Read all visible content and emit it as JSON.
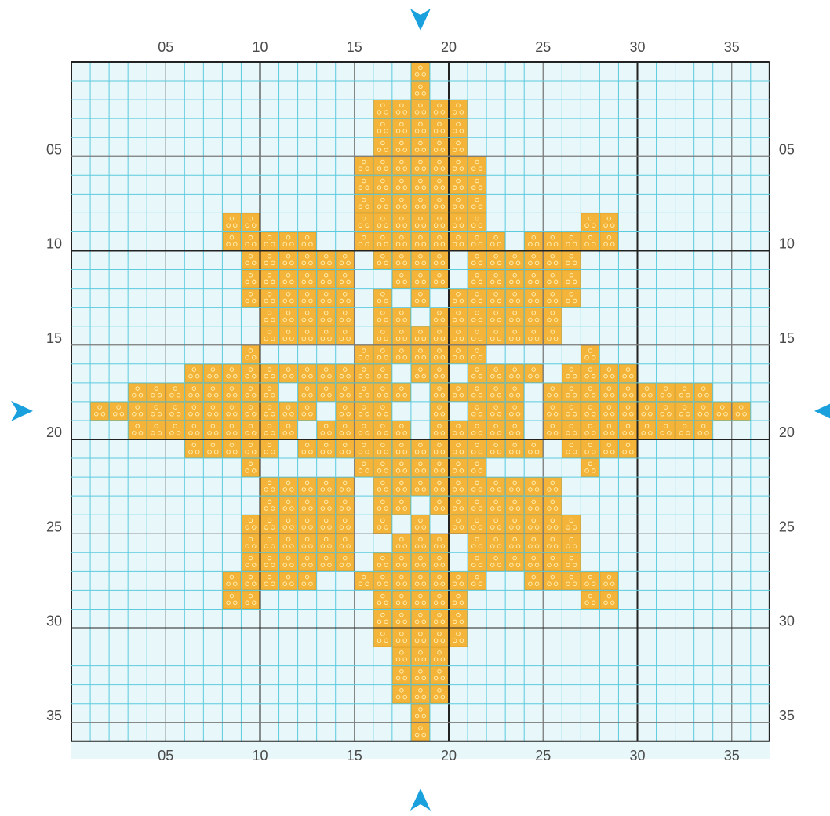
{
  "pattern": {
    "grid_columns": 37,
    "grid_rows": 36,
    "major_every": 10,
    "column_labels": [
      "05",
      "10",
      "15",
      "20",
      "25",
      "30",
      "35"
    ],
    "row_labels": [
      "05",
      "10",
      "15",
      "20",
      "25",
      "30",
      "35"
    ],
    "stitch_rows": [
      [
        19,
        19,
        19
      ],
      [
        19,
        19,
        20
      ],
      [
        17,
        21,
        17
      ],
      [
        17,
        21,
        17
      ],
      [
        17,
        21,
        17
      ],
      [
        16,
        22,
        16
      ],
      [
        16,
        22,
        16
      ],
      [
        16,
        22,
        16
      ],
      [
        9,
        10,
        9,
        16,
        22,
        16,
        28,
        29,
        28
      ],
      [
        9,
        13,
        9,
        16,
        23,
        16,
        25,
        29,
        25
      ],
      [
        10,
        15,
        10,
        17,
        20,
        17,
        22,
        27,
        22
      ],
      [
        10,
        15,
        10,
        18,
        19,
        18,
        20,
        20,
        20,
        22,
        27,
        22
      ],
      [
        10,
        15,
        10,
        17,
        17,
        17,
        19,
        19,
        19,
        21,
        21,
        21,
        22,
        27,
        22
      ],
      [
        11,
        15,
        11,
        17,
        18,
        17,
        20,
        21,
        20,
        22,
        26,
        22
      ],
      [
        11,
        15,
        11,
        17,
        21,
        17,
        22,
        26,
        22
      ],
      [
        10,
        10,
        10,
        16,
        22,
        16,
        28,
        28,
        28
      ],
      [
        7,
        10,
        7,
        11,
        13,
        11,
        14,
        17,
        14,
        19,
        20,
        19,
        22,
        25,
        22,
        27,
        30,
        27
      ],
      [
        4,
        10,
        4,
        11,
        11,
        11,
        13,
        17,
        13,
        18,
        18,
        18,
        20,
        24,
        20,
        26,
        34,
        26
      ],
      [
        2,
        10,
        2,
        11,
        13,
        11,
        15,
        17,
        15,
        20,
        20,
        20,
        22,
        24,
        22,
        26,
        36,
        26
      ],
      [
        4,
        12,
        4,
        14,
        18,
        14,
        20,
        24,
        20,
        26,
        34,
        26
      ],
      [
        7,
        11,
        7,
        13,
        25,
        13,
        27,
        30,
        27
      ],
      [
        10,
        10,
        10,
        16,
        22,
        16,
        28,
        28,
        28
      ],
      [
        11,
        15,
        11,
        17,
        21,
        17,
        22,
        26,
        22
      ],
      [
        11,
        15,
        11,
        17,
        18,
        17,
        20,
        21,
        20,
        22,
        26,
        22
      ],
      [
        10,
        15,
        10,
        17,
        17,
        17,
        19,
        19,
        19,
        21,
        21,
        21,
        22,
        27,
        22
      ],
      [
        10,
        15,
        10,
        18,
        19,
        18,
        20,
        20,
        20,
        22,
        27,
        22
      ],
      [
        10,
        15,
        10,
        17,
        20,
        17,
        22,
        27,
        22
      ],
      [
        9,
        13,
        9,
        16,
        22,
        16,
        25,
        29,
        25
      ],
      [
        9,
        10,
        9,
        17,
        21,
        17,
        28,
        29,
        28
      ],
      [
        17,
        21,
        17
      ],
      [
        17,
        21,
        17
      ],
      [
        18,
        20,
        18
      ],
      [
        18,
        20,
        18
      ],
      [
        18,
        20,
        18
      ],
      [
        19,
        19,
        19
      ],
      [
        19,
        19,
        19
      ]
    ],
    "colors": {
      "stitch": "#f4b43a",
      "stitch_border": "#d99a1e",
      "stitch_symbol": "#fff2b8",
      "grid_minor": "#5ccbde",
      "grid_major": "#222222",
      "grid_mid": "#7a7a7a",
      "background": "#e7f7fa",
      "arrow": "#1aa0dc"
    }
  }
}
